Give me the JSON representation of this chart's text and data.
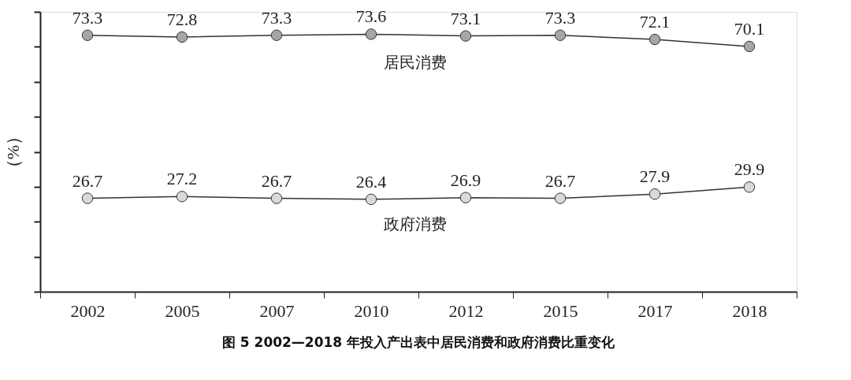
{
  "chart_data": {
    "type": "line",
    "title": "图 5 2002—2018 年投入产出表中居民消费和政府消费比重变化",
    "ylabel": "（%）",
    "categories": [
      "2002",
      "2005",
      "2007",
      "2010",
      "2012",
      "2015",
      "2017",
      "2018"
    ],
    "series": [
      {
        "name": "居民消费",
        "color": "#a6a6a6",
        "values": [
          73.3,
          72.8,
          73.3,
          73.6,
          73.1,
          73.3,
          72.1,
          70.1
        ]
      },
      {
        "name": "政府消费",
        "color": "#d9d9d9",
        "values": [
          26.7,
          27.2,
          26.7,
          26.4,
          26.9,
          26.7,
          27.9,
          29.9
        ]
      }
    ],
    "ylim": [
      0,
      80
    ],
    "yticks": [
      {
        "value": 0,
        "label": null
      },
      {
        "value": 10,
        "label": null
      },
      {
        "value": 20,
        "label": null
      },
      {
        "value": 30,
        "label": null
      },
      {
        "value": 40,
        "label": null
      },
      {
        "value": 50,
        "label": null
      },
      {
        "value": 60,
        "label": null
      },
      {
        "value": 70,
        "label": null
      },
      {
        "value": 80,
        "label": null
      }
    ],
    "tick_labels": "x",
    "data_labels": true,
    "marker": "circle",
    "line_style": "solid",
    "grid": false
  }
}
